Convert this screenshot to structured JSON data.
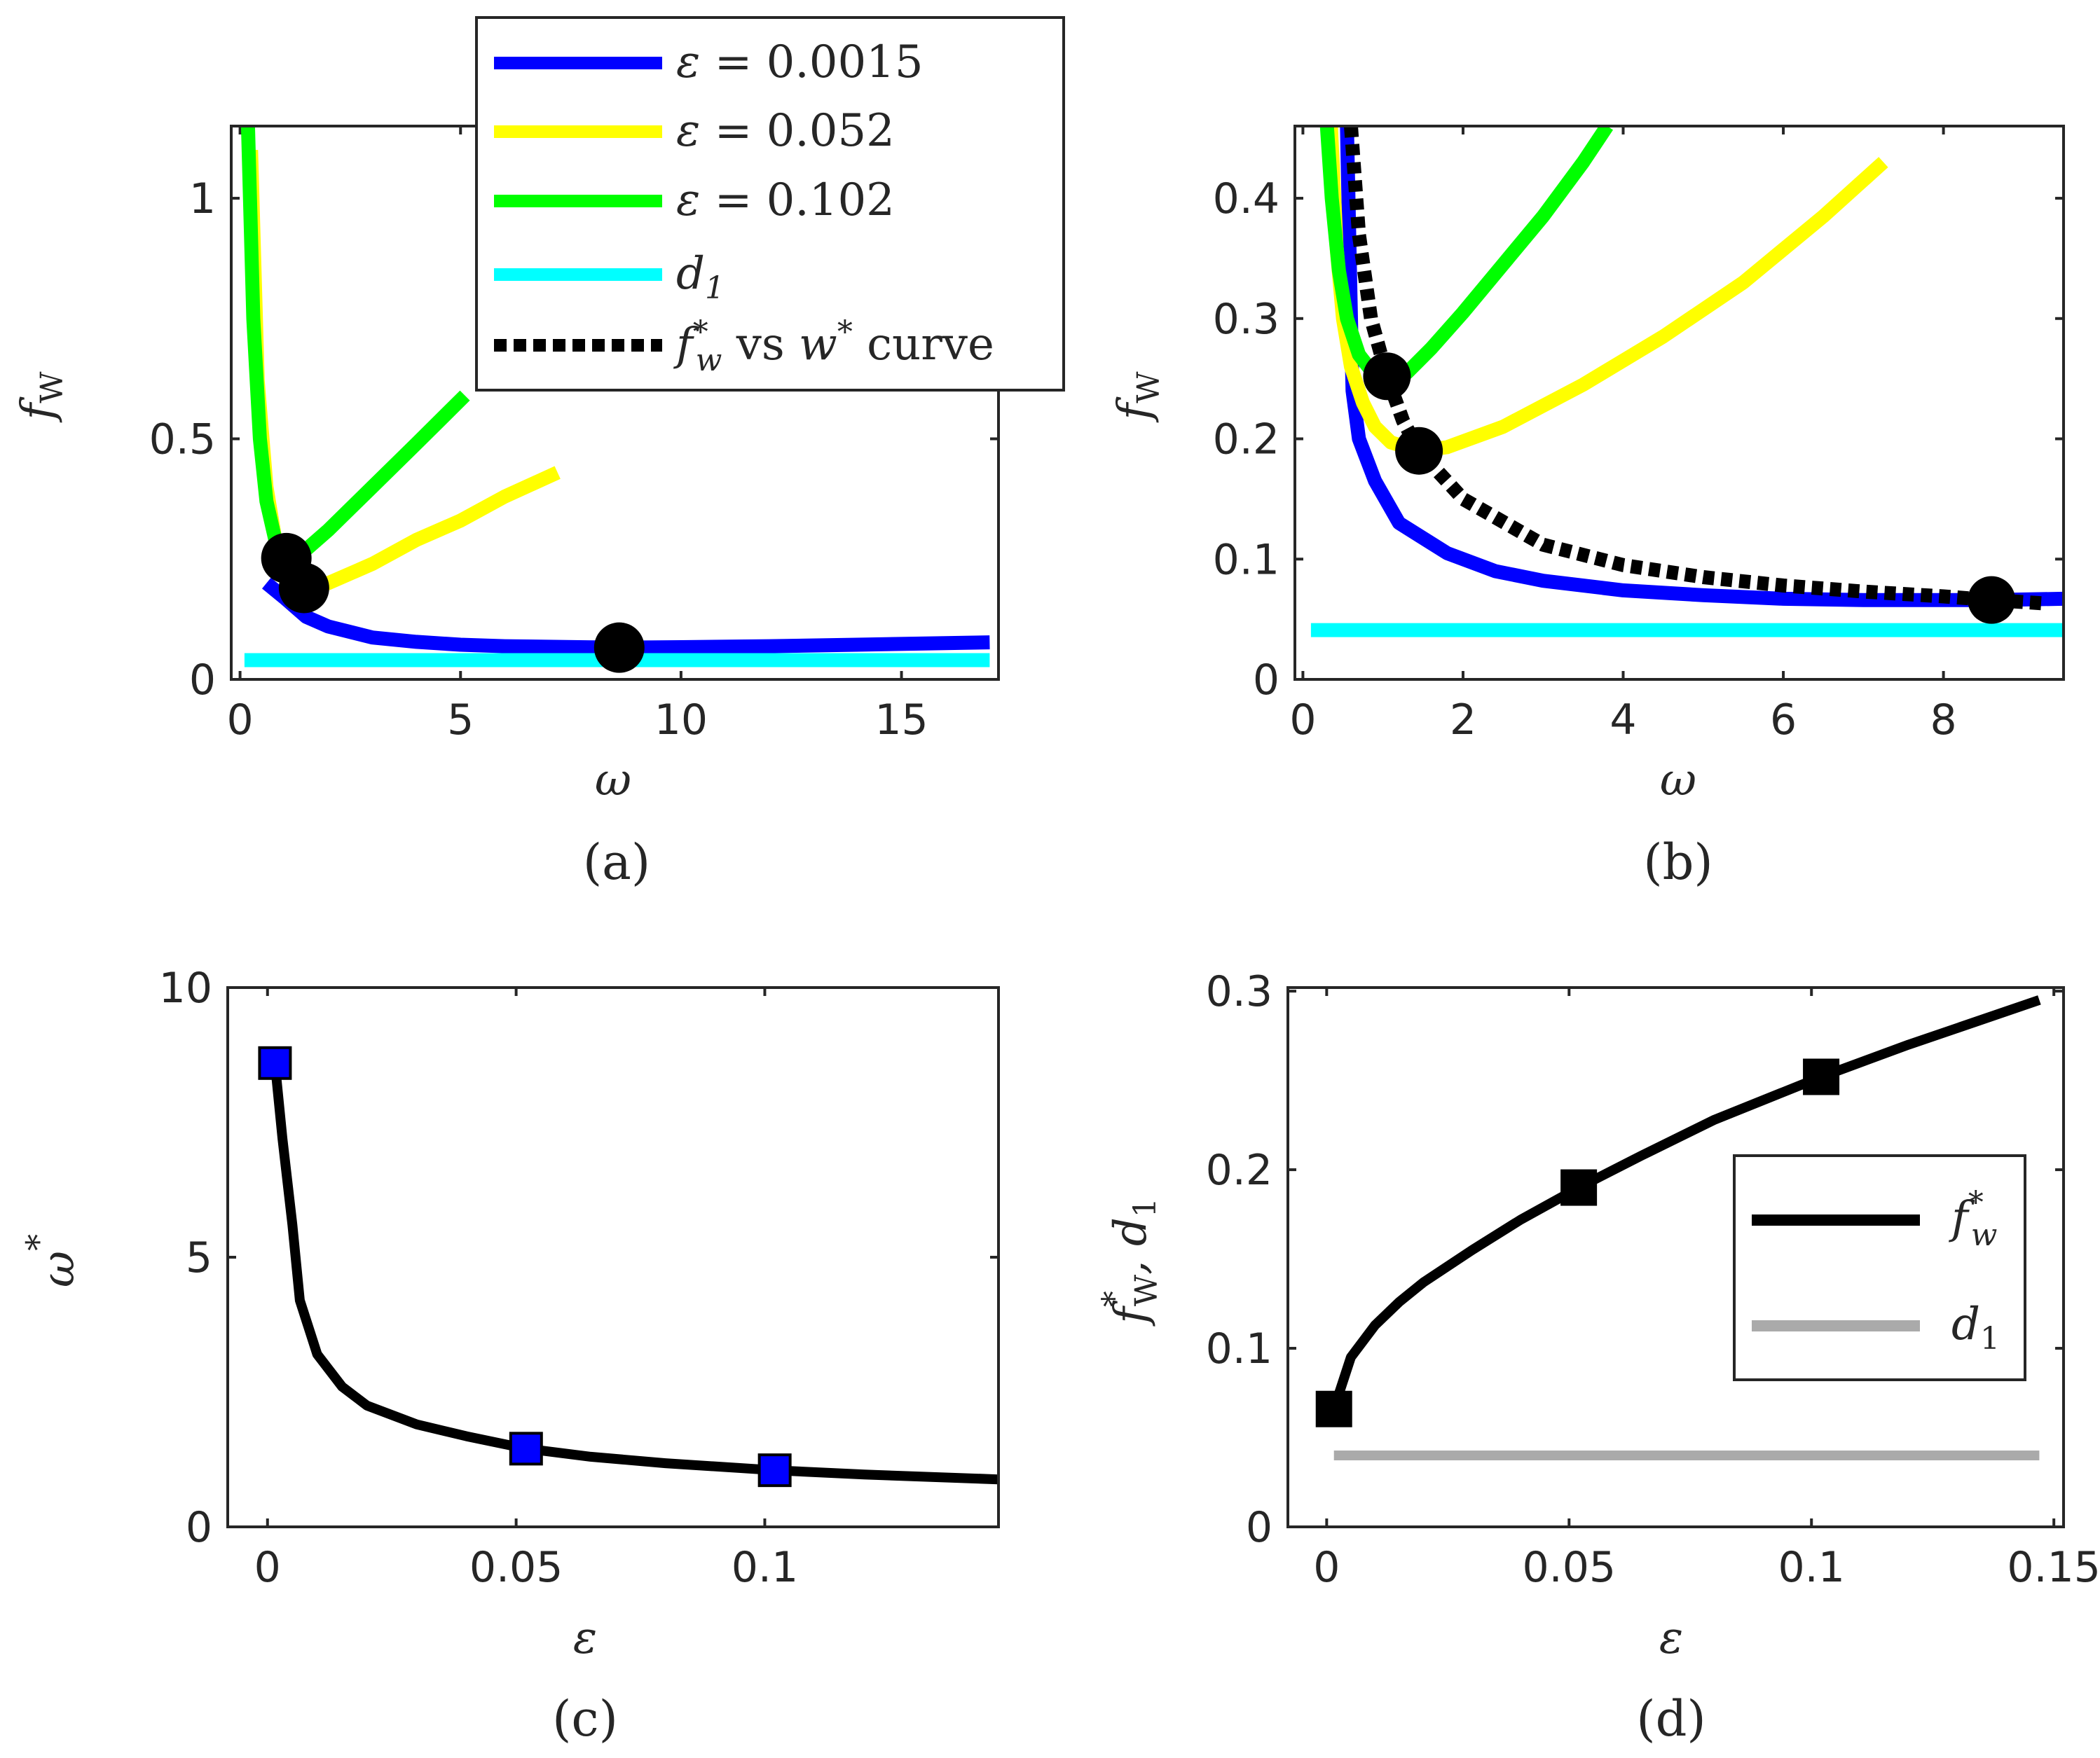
{
  "figure": {
    "captions": [
      "(a)",
      "(b)",
      "(c)",
      "(d)"
    ]
  },
  "legend_top": {
    "entries": [
      {
        "label_prefix": "ε = ",
        "label_value": "0.0015",
        "color": "#0000FF"
      },
      {
        "label_prefix": "ε = ",
        "label_value": "0.052",
        "color": "#FFFF00"
      },
      {
        "label_prefix": "ε = ",
        "label_value": "0.102",
        "color": "#00FF00"
      },
      {
        "label": "d",
        "sub": "1",
        "color": "#00FFFF"
      },
      {
        "label_f": "f",
        "label_f_sub": "w",
        "label_f_sup": "*",
        "label_mid": " vs ",
        "label_w": "w",
        "label_w_sup": "*",
        "label_end": " curve",
        "color": "#000000"
      }
    ]
  },
  "legend_d": {
    "entries": [
      {
        "label": "f",
        "sup": "*",
        "sub": "w",
        "color": "#000000"
      },
      {
        "label": "d",
        "sub": "1",
        "color": "#AAAAAA"
      }
    ]
  },
  "chart_data": [
    {
      "panel": "a",
      "type": "line",
      "title": "",
      "xlabel": "ω",
      "ylabel": "f",
      "ylabel_sub": "W",
      "xlim": [
        -0.2,
        17.2
      ],
      "ylim": [
        0,
        1.15
      ],
      "xticks": [
        0,
        5,
        10,
        15
      ],
      "yticks": [
        0,
        0.5,
        1
      ],
      "ytick_labels": [
        "0",
        "0.5",
        "1"
      ],
      "series": [
        {
          "name": "ε = 0.0015",
          "color": "#0000FF",
          "x": [
            0.6,
            1.0,
            1.5,
            2.0,
            3.0,
            4.0,
            5.0,
            6.0,
            8.6,
            10.0,
            12.0,
            14.0,
            17.0
          ],
          "y": [
            0.2,
            0.17,
            0.13,
            0.11,
            0.087,
            0.078,
            0.072,
            0.069,
            0.066,
            0.067,
            0.069,
            0.072,
            0.077
          ]
        },
        {
          "name": "ε = 0.052",
          "color": "#FFFF00",
          "x": [
            0.25,
            0.4,
            0.6,
            0.8,
            1.0,
            1.2,
            1.45,
            2.0,
            3.0,
            4.0,
            5.0,
            6.0,
            7.2
          ],
          "y": [
            1.1,
            0.62,
            0.4,
            0.29,
            0.24,
            0.21,
            0.19,
            0.2,
            0.24,
            0.29,
            0.33,
            0.38,
            0.43
          ]
        },
        {
          "name": "ε = 0.102",
          "color": "#00FF00",
          "x": [
            0.18,
            0.3,
            0.45,
            0.6,
            0.8,
            1.05,
            1.5,
            2.0,
            3.0,
            4.0,
            5.1
          ],
          "y": [
            1.15,
            0.75,
            0.5,
            0.37,
            0.29,
            0.252,
            0.27,
            0.31,
            0.4,
            0.49,
            0.59
          ]
        },
        {
          "name": "d1",
          "color": "#00FFFF",
          "x": [
            0.1,
            17.0
          ],
          "y": [
            0.04,
            0.04
          ]
        }
      ],
      "markers": {
        "color": "#000000",
        "x": [
          1.05,
          1.45,
          8.6
        ],
        "y": [
          0.252,
          0.19,
          0.066
        ]
      }
    },
    {
      "panel": "b",
      "type": "line",
      "title": "",
      "xlabel": "ω",
      "ylabel": "f",
      "ylabel_sub": "W",
      "xlim": [
        -0.1,
        9.5
      ],
      "ylim": [
        0,
        0.46
      ],
      "xticks": [
        0,
        2,
        4,
        6,
        8
      ],
      "yticks": [
        0,
        0.1,
        0.2,
        0.3,
        0.4
      ],
      "ytick_labels": [
        "0",
        "0.1",
        "0.2",
        "0.3",
        "0.4"
      ],
      "series": [
        {
          "name": "ε = 0.0015",
          "color": "#0000FF",
          "x": [
            0.55,
            0.6,
            0.62,
            0.7,
            0.9,
            1.2,
            1.8,
            2.4,
            3.0,
            4.0,
            5.0,
            6.0,
            7.0,
            8.6,
            9.5
          ],
          "y": [
            0.46,
            0.3,
            0.24,
            0.2,
            0.165,
            0.13,
            0.105,
            0.09,
            0.082,
            0.074,
            0.07,
            0.067,
            0.066,
            0.066,
            0.067
          ]
        },
        {
          "name": "ε = 0.052",
          "color": "#FFFF00",
          "x": [
            0.35,
            0.42,
            0.5,
            0.6,
            0.75,
            0.9,
            1.1,
            1.45,
            1.8,
            2.5,
            3.5,
            4.5,
            5.5,
            6.5,
            7.25
          ],
          "y": [
            0.46,
            0.36,
            0.3,
            0.26,
            0.23,
            0.21,
            0.197,
            0.19,
            0.193,
            0.21,
            0.245,
            0.285,
            0.33,
            0.385,
            0.43
          ]
        },
        {
          "name": "ε = 0.102",
          "color": "#00FF00",
          "x": [
            0.3,
            0.36,
            0.45,
            0.55,
            0.7,
            0.85,
            1.05,
            1.3,
            1.6,
            2.0,
            2.5,
            3.0,
            3.5,
            3.8
          ],
          "y": [
            0.46,
            0.4,
            0.34,
            0.3,
            0.27,
            0.257,
            0.252,
            0.255,
            0.275,
            0.305,
            0.345,
            0.385,
            0.43,
            0.46
          ]
        },
        {
          "name": "d1",
          "color": "#00FFFF",
          "x": [
            0.1,
            9.5
          ],
          "y": [
            0.041,
            0.041
          ]
        },
        {
          "name": "f_w* vs w* curve",
          "color": "#000000",
          "dashed": true,
          "x": [
            0.6,
            0.7,
            0.85,
            1.05,
            1.25,
            1.45,
            2.0,
            3.0,
            4.0,
            5.0,
            6.0,
            7.0,
            8.0,
            8.6,
            9.3
          ],
          "y": [
            0.46,
            0.37,
            0.3,
            0.252,
            0.215,
            0.19,
            0.15,
            0.112,
            0.095,
            0.085,
            0.078,
            0.073,
            0.069,
            0.066,
            0.063
          ]
        }
      ],
      "markers": {
        "color": "#000000",
        "x": [
          1.05,
          1.45,
          8.6
        ],
        "y": [
          0.252,
          0.19,
          0.066
        ]
      }
    },
    {
      "panel": "c",
      "type": "line",
      "title": "",
      "xlabel": "ε",
      "ylabel": "ω",
      "ylabel_sup": "*",
      "xlim": [
        -0.008,
        0.147
      ],
      "ylim": [
        0,
        10
      ],
      "xticks": [
        0,
        0.05,
        0.1
      ],
      "xtick_labels": [
        "0",
        "0.05",
        "0.1"
      ],
      "yticks": [
        0,
        5,
        10
      ],
      "ytick_labels": [
        "0",
        "5",
        "10"
      ],
      "series": [
        {
          "name": "ω*",
          "color": "#000000",
          "x": [
            0.0015,
            0.003,
            0.005,
            0.0065,
            0.01,
            0.015,
            0.02,
            0.03,
            0.04,
            0.052,
            0.065,
            0.08,
            0.102,
            0.12,
            0.147
          ],
          "y": [
            8.6,
            7.2,
            5.6,
            4.2,
            3.2,
            2.6,
            2.25,
            1.9,
            1.68,
            1.45,
            1.3,
            1.18,
            1.05,
            0.97,
            0.88
          ]
        }
      ],
      "markers": {
        "shape": "square",
        "color": "#0000FF",
        "x": [
          0.0015,
          0.052,
          0.102
        ],
        "y": [
          8.6,
          1.45,
          1.05
        ]
      }
    },
    {
      "panel": "d",
      "type": "line",
      "title": "",
      "xlabel": "ε",
      "ylabel": "f",
      "ylabel_sup": "*",
      "ylabel_sub": "W",
      "ylabel_tail": ", d",
      "ylabel_tail_sub": "1",
      "xlim": [
        -0.008,
        0.152
      ],
      "ylim": [
        0,
        0.302
      ],
      "xticks": [
        0,
        0.05,
        0.1,
        0.15
      ],
      "xtick_labels": [
        "0",
        "0.05",
        "0.1",
        "0.15"
      ],
      "yticks": [
        0,
        0.1,
        0.2,
        0.3
      ],
      "ytick_labels": [
        "0",
        "0.1",
        "0.2",
        "0.3"
      ],
      "series": [
        {
          "name": "f_w*",
          "color": "#000000",
          "x": [
            0.0015,
            0.005,
            0.01,
            0.015,
            0.02,
            0.03,
            0.04,
            0.052,
            0.065,
            0.08,
            0.102,
            0.12,
            0.147
          ],
          "y": [
            0.066,
            0.095,
            0.113,
            0.126,
            0.137,
            0.155,
            0.172,
            0.19,
            0.208,
            0.228,
            0.252,
            0.27,
            0.295
          ]
        },
        {
          "name": "d1",
          "color": "#AAAAAA",
          "x": [
            0.0015,
            0.147
          ],
          "y": [
            0.04,
            0.04
          ]
        }
      ],
      "markers": {
        "shape": "square",
        "color": "#000000",
        "x": [
          0.0015,
          0.052,
          0.102
        ],
        "y": [
          0.066,
          0.19,
          0.252
        ]
      }
    }
  ]
}
